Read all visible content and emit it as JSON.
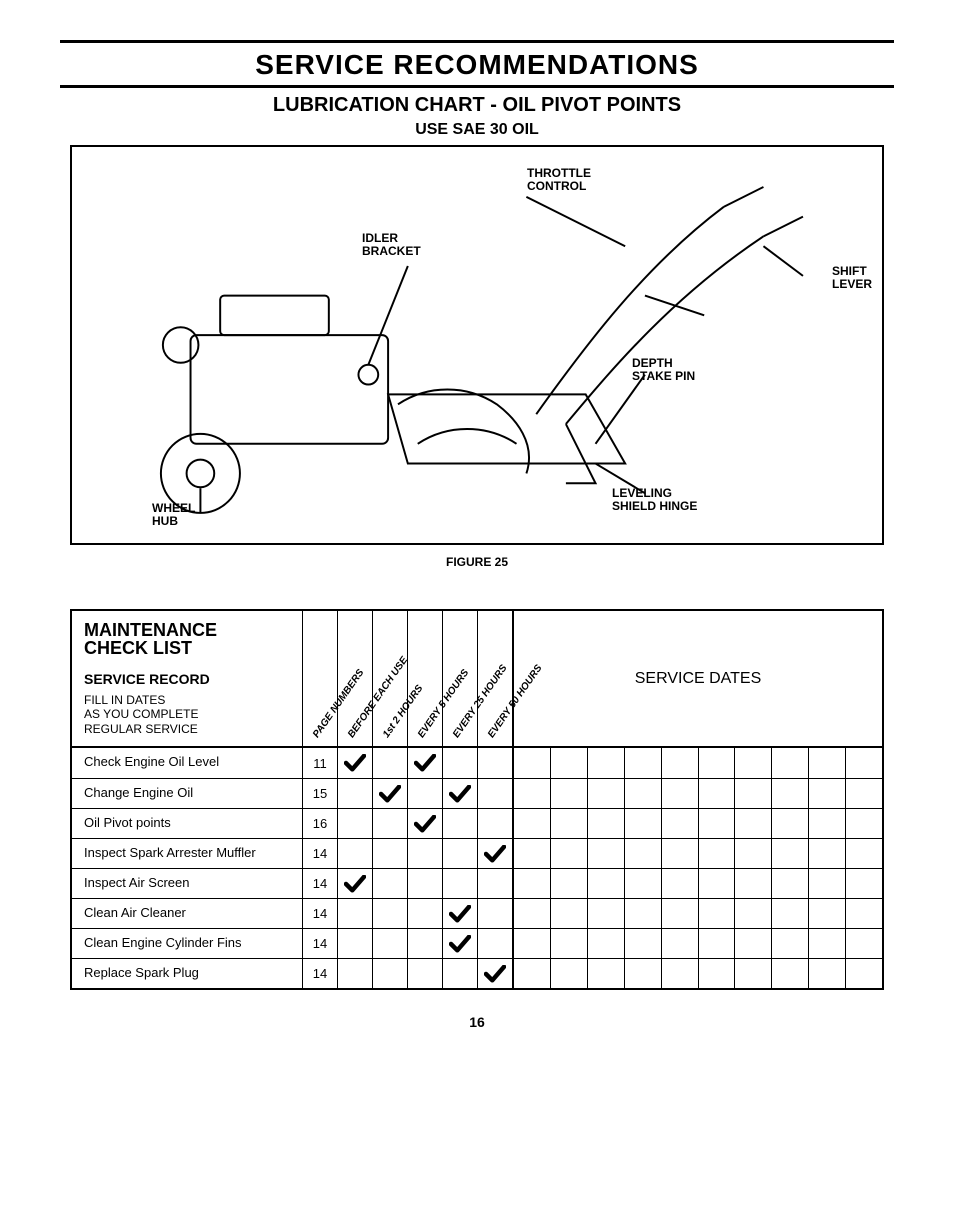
{
  "title": "SERVICE RECOMMENDATIONS",
  "subtitle": "LUBRICATION CHART - OIL PIVOT POINTS",
  "subsubtitle": "USE SAE 30 OIL",
  "figure_caption": "FIGURE 25",
  "page_number": "16",
  "diagram_labels": {
    "throttle": "THROTTLE\nCONTROL",
    "idler": "IDLER\nBRACKET",
    "shift": "SHIFT\nLEVER",
    "depth": "DEPTH\nSTAKE PIN",
    "leveling": "LEVELING\nSHIELD HINGE",
    "wheel": "WHEEL\nHUB"
  },
  "maintenance": {
    "heading1": "MAINTENANCE",
    "heading2": "CHECK LIST",
    "service_record": "SERVICE RECORD",
    "fill_in": "FILL IN DATES\nAS YOU COMPLETE\nREGULAR SERVICE",
    "service_dates": "SERVICE DATES",
    "columns": [
      "PAGE NUMBERS",
      "BEFORE EACH USE",
      "1st 2 HOURS",
      "EVERY 5 HOURS",
      "EVERY 25 HOURS",
      "EVERY 50 HOURS"
    ],
    "rows": [
      {
        "label": "Check Engine Oil Level",
        "page": "11",
        "marks": [
          true,
          false,
          true,
          false,
          false
        ]
      },
      {
        "label": "Change Engine Oil",
        "page": "15",
        "marks": [
          false,
          true,
          false,
          true,
          false
        ]
      },
      {
        "label": "Oil Pivot points",
        "page": "16",
        "marks": [
          false,
          false,
          true,
          false,
          false
        ]
      },
      {
        "label": "Inspect Spark Arrester Muffler",
        "page": "14",
        "marks": [
          false,
          false,
          false,
          false,
          true
        ]
      },
      {
        "label": "Inspect Air Screen",
        "page": "14",
        "marks": [
          true,
          false,
          false,
          false,
          false
        ]
      },
      {
        "label": "Clean Air Cleaner",
        "page": "14",
        "marks": [
          false,
          false,
          false,
          true,
          false
        ]
      },
      {
        "label": "Clean Engine Cylinder Fins",
        "page": "14",
        "marks": [
          false,
          false,
          false,
          true,
          false
        ]
      },
      {
        "label": "Replace Spark Plug",
        "page": "14",
        "marks": [
          false,
          false,
          false,
          false,
          true
        ]
      }
    ],
    "date_cols": 10
  }
}
